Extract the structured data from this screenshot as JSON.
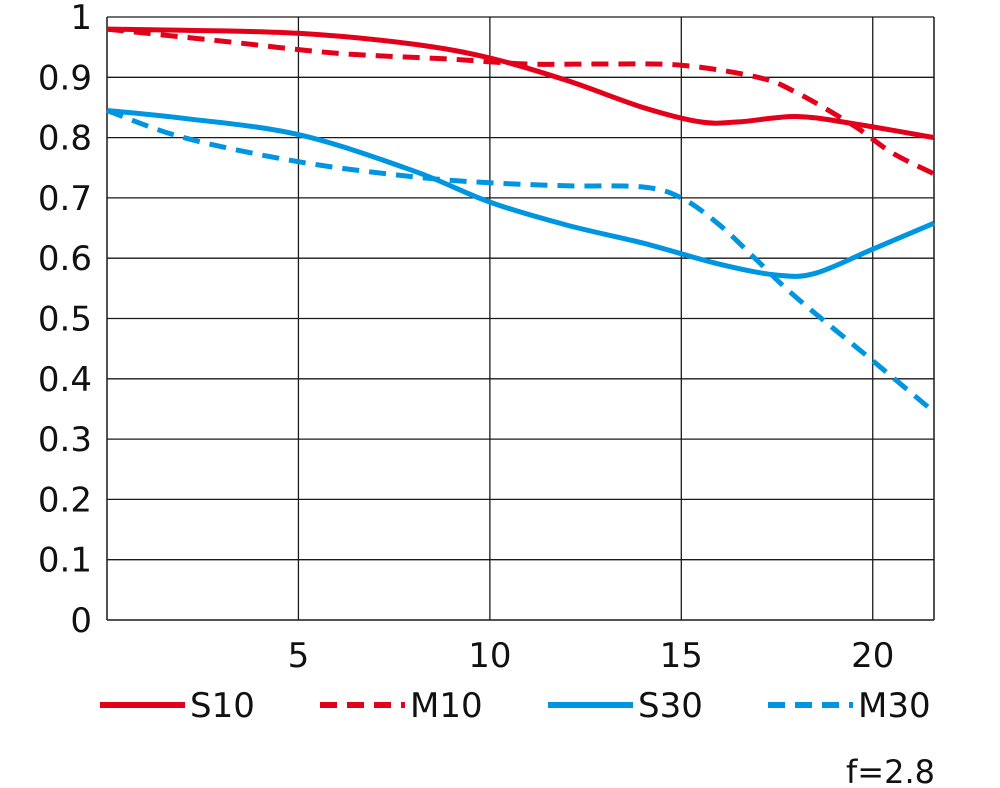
{
  "chart_data": {
    "type": "line",
    "title": "",
    "xlabel": "",
    "ylabel": "",
    "xlim": [
      0,
      21.6
    ],
    "ylim": [
      0,
      1
    ],
    "xticks": [
      5,
      10,
      15,
      20
    ],
    "xtick_labels": [
      "5",
      "10",
      "15",
      "20"
    ],
    "yticks": [
      0,
      0.1,
      0.2,
      0.3,
      0.4,
      0.5,
      0.6,
      0.7,
      0.8,
      0.9,
      1
    ],
    "ytick_labels": [
      "0",
      "0.1",
      "0.2",
      "0.3",
      "0.4",
      "0.5",
      "0.6",
      "0.7",
      "0.8",
      "0.9",
      "1"
    ],
    "grid": true,
    "legend_position": "bottom",
    "annotation": "f=2.8",
    "series": [
      {
        "name": "S10",
        "color": "#e3001b",
        "dash": "solid",
        "x": [
          0,
          2,
          5,
          8,
          10,
          12,
          14,
          15.5,
          16.5,
          18,
          19.5,
          21.6
        ],
        "y": [
          0.98,
          0.978,
          0.973,
          0.955,
          0.932,
          0.895,
          0.85,
          0.826,
          0.826,
          0.835,
          0.823,
          0.8
        ]
      },
      {
        "name": "M10",
        "color": "#e3001b",
        "dash": "dashed",
        "x": [
          0,
          3,
          6,
          9,
          11,
          13,
          15,
          17,
          18,
          19.5,
          20.5,
          21.6
        ],
        "y": [
          0.98,
          0.96,
          0.94,
          0.93,
          0.922,
          0.922,
          0.92,
          0.9,
          0.875,
          0.82,
          0.775,
          0.74
        ]
      },
      {
        "name": "S30",
        "color": "#0095e0",
        "dash": "solid",
        "x": [
          0,
          2,
          5,
          8,
          10,
          12,
          14,
          16,
          17.5,
          18.5,
          20,
          21.6
        ],
        "y": [
          0.845,
          0.832,
          0.805,
          0.745,
          0.693,
          0.655,
          0.625,
          0.59,
          0.572,
          0.575,
          0.615,
          0.658
        ]
      },
      {
        "name": "M30",
        "color": "#0095e0",
        "dash": "dashed",
        "x": [
          0,
          2,
          5,
          8,
          10,
          12,
          14,
          15,
          16,
          17,
          18,
          20,
          21.6
        ],
        "y": [
          0.845,
          0.8,
          0.76,
          0.735,
          0.725,
          0.72,
          0.718,
          0.7,
          0.655,
          0.595,
          0.535,
          0.43,
          0.345
        ]
      }
    ]
  }
}
